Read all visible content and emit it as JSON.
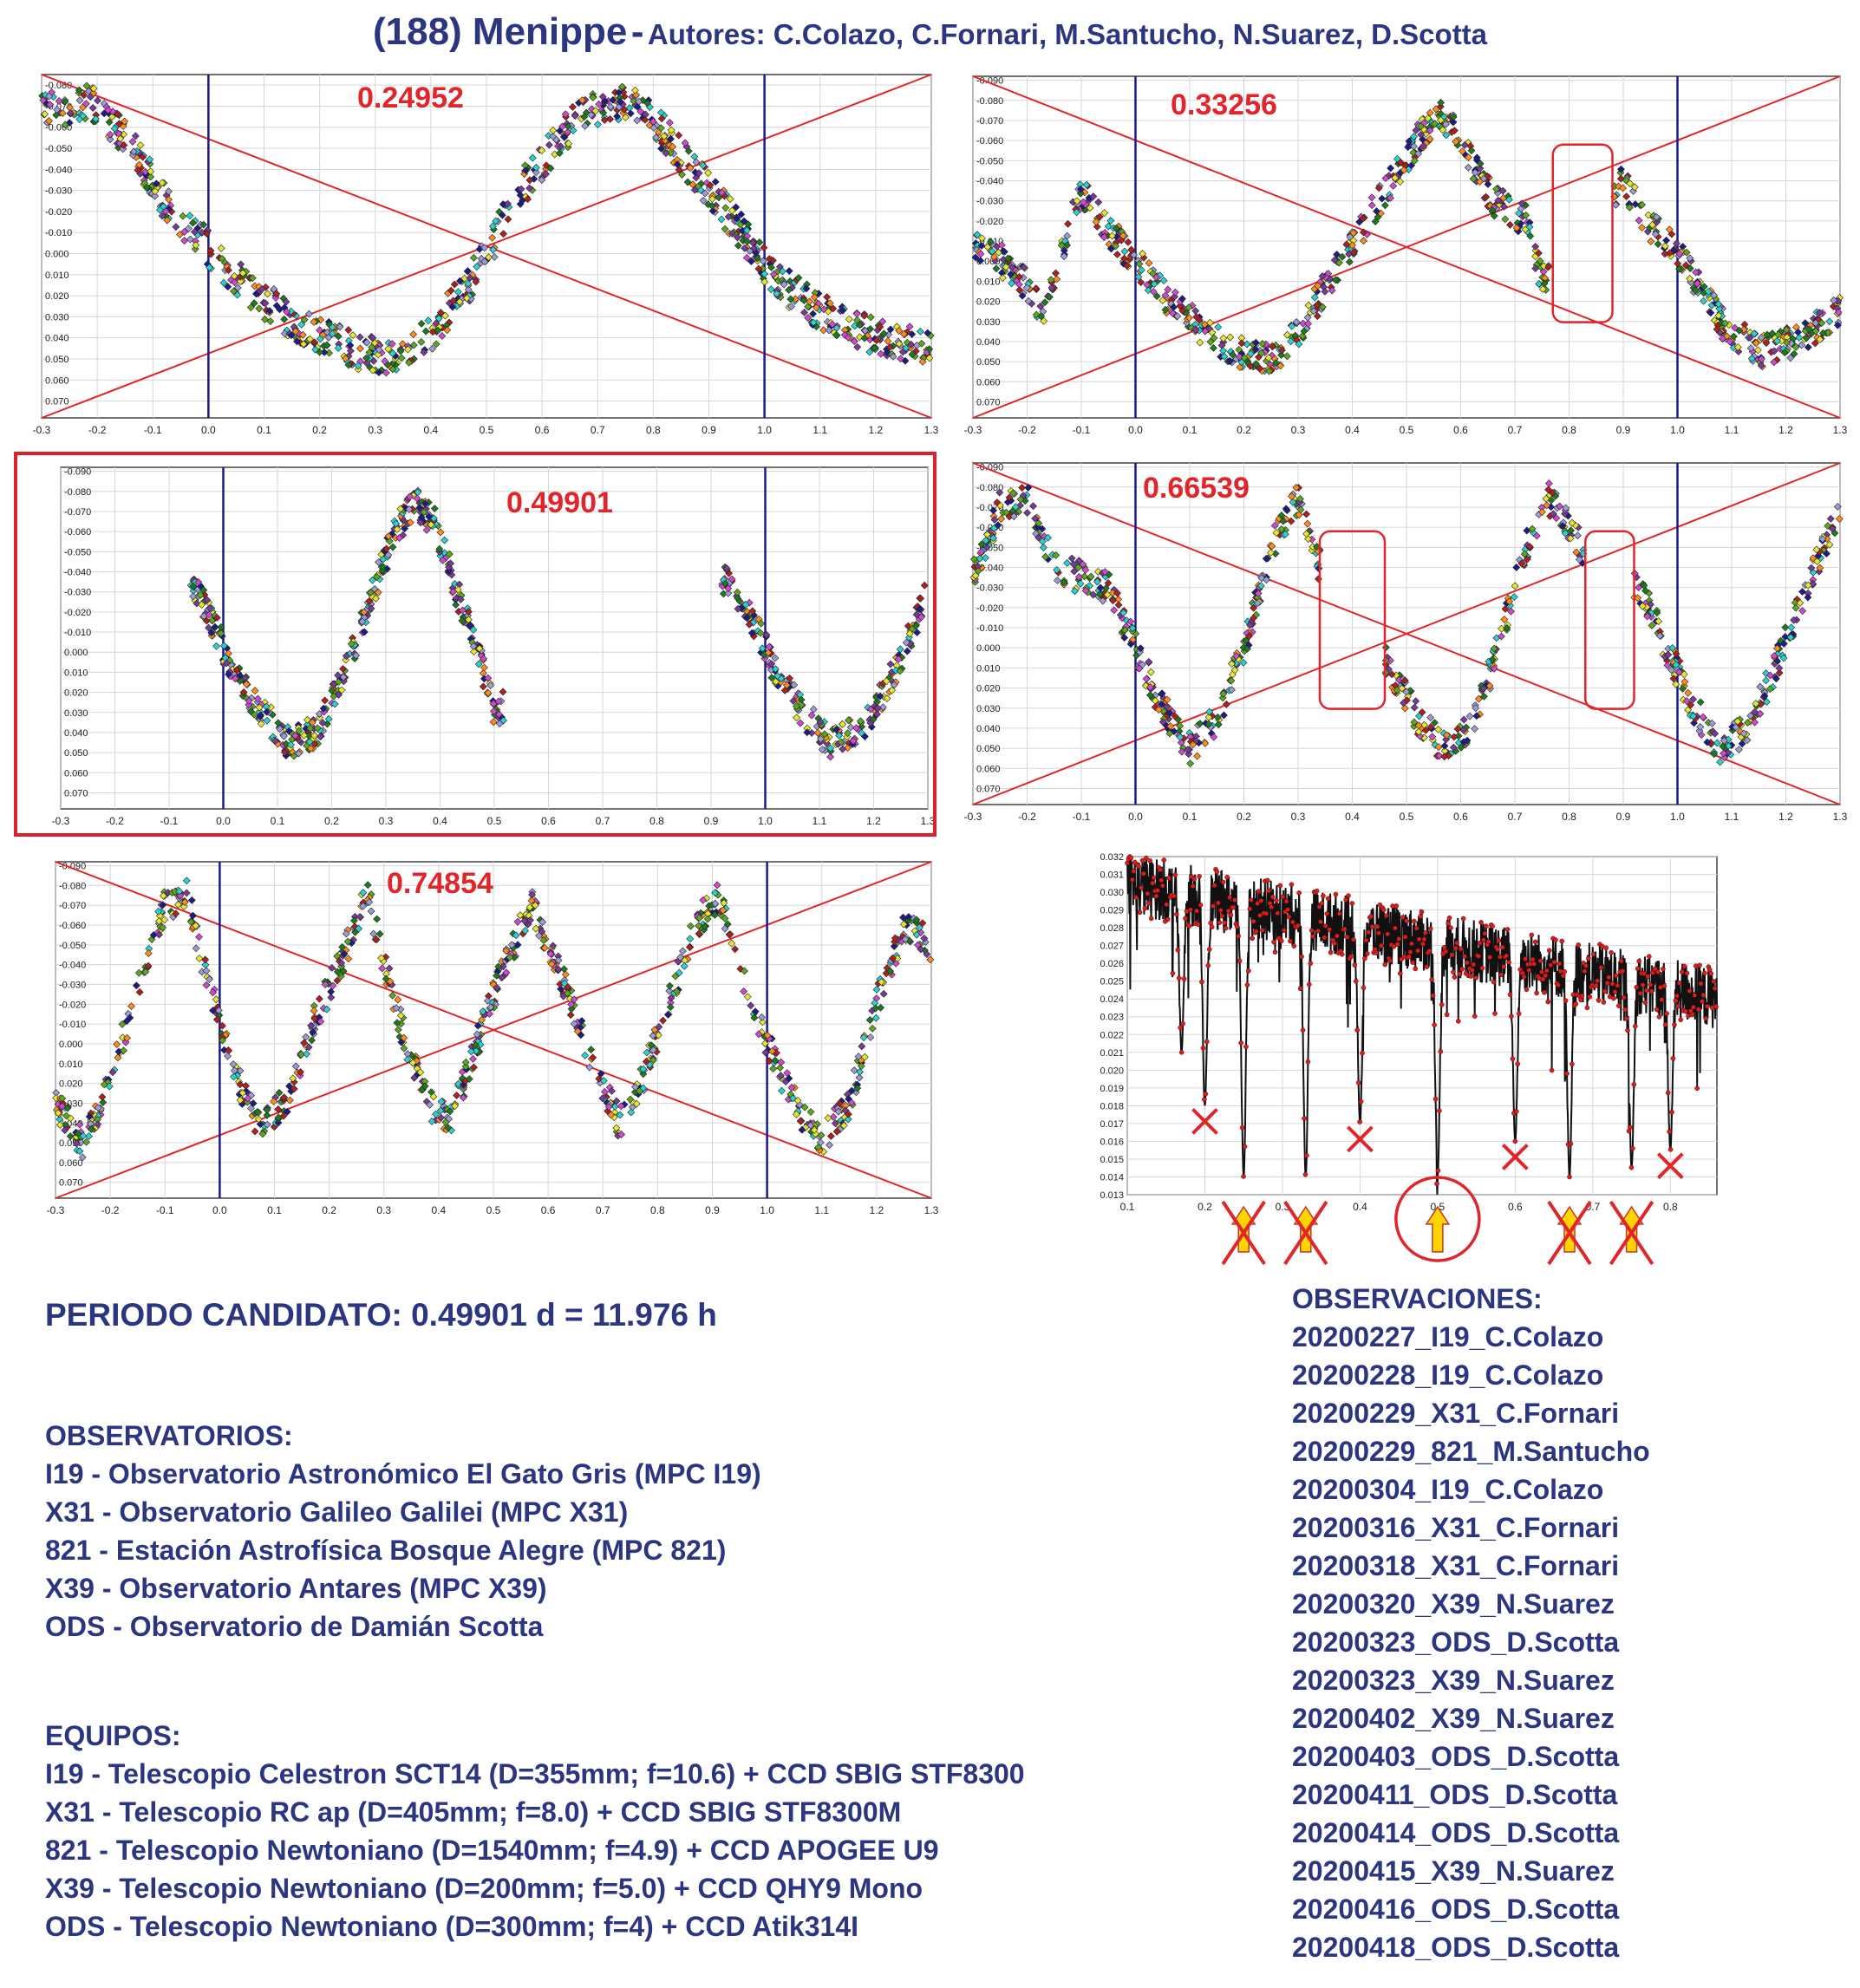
{
  "header": {
    "object": "(188) Menippe",
    "separator": "-",
    "authors": "Autores: C.Colazo, C.Fornari, M.Santucho, N.Suarez, D.Scotta"
  },
  "colors": {
    "navy": "#2b3580",
    "red": "#e0262a",
    "grid": "#d6d6d6",
    "axis_blue": "#1a1a8c",
    "marker_palette": [
      "#1e7a1e",
      "#2bd1d1",
      "#e6e62e",
      "#9b9bd6",
      "#d04ad0",
      "#1d1d8a",
      "#b02020",
      "#5aa81e",
      "#ff8c1a",
      "#7a3a9a"
    ]
  },
  "chart_data": [
    {
      "type": "scatter",
      "title": "0.24952",
      "x_range": [
        -0.3,
        1.3
      ],
      "y_range": [
        -0.085,
        0.078
      ],
      "y_inverted": true,
      "x_ticks": [
        "-0.3",
        "-0.2",
        "-0.1",
        "0.0",
        "0.1",
        "0.2",
        "0.3",
        "0.4",
        "0.5",
        "0.6",
        "0.7",
        "0.8",
        "0.9",
        "1.0",
        "1.1",
        "1.2",
        "1.3"
      ],
      "y_ticks": [
        "-0.080",
        "-0.070",
        "-0.060",
        "-0.050",
        "-0.040",
        "-0.030",
        "-0.020",
        "-0.010",
        "0.000",
        "0.010",
        "0.020",
        "0.030",
        "0.040",
        "0.050",
        "0.060",
        "0.070"
      ],
      "vertical_lines": [
        0.0,
        1.0
      ],
      "cross_lines": true,
      "curve": [
        [
          -0.3,
          -0.066
        ],
        [
          -0.22,
          -0.073
        ],
        [
          -0.15,
          -0.055
        ],
        [
          -0.08,
          -0.025
        ],
        [
          -0.02,
          -0.008
        ],
        [
          0.05,
          0.012
        ],
        [
          0.15,
          0.032
        ],
        [
          0.25,
          0.045
        ],
        [
          0.33,
          0.05
        ],
        [
          0.4,
          0.038
        ],
        [
          0.48,
          0.01
        ],
        [
          0.56,
          -0.03
        ],
        [
          0.65,
          -0.06
        ],
        [
          0.72,
          -0.072
        ],
        [
          0.78,
          -0.07
        ],
        [
          0.84,
          -0.05
        ],
        [
          0.9,
          -0.03
        ],
        [
          0.96,
          -0.01
        ],
        [
          1.02,
          0.012
        ],
        [
          1.1,
          0.028
        ],
        [
          1.2,
          0.04
        ],
        [
          1.3,
          0.045
        ]
      ],
      "gaps": [],
      "spread": 0.009
    },
    {
      "type": "scatter",
      "title": "0.33256",
      "x_range": [
        -0.3,
        1.3
      ],
      "y_range": [
        -0.092,
        0.078
      ],
      "y_inverted": true,
      "x_ticks": [
        "-0.3",
        "-0.2",
        "-0.1",
        "0.0",
        "0.1",
        "0.2",
        "0.3",
        "0.4",
        "0.5",
        "0.6",
        "0.7",
        "0.8",
        "0.9",
        "1.0",
        "1.1",
        "1.2",
        "1.3"
      ],
      "y_ticks": [
        "-0.090",
        "-0.080",
        "-0.070",
        "-0.060",
        "-0.050",
        "-0.040",
        "-0.030",
        "-0.020",
        "-0.010",
        "0.000",
        "0.010",
        "0.020",
        "0.030",
        "0.040",
        "0.050",
        "0.060",
        "0.070"
      ],
      "vertical_lines": [
        0.0,
        1.0
      ],
      "cross_lines": true,
      "curve": [
        [
          -0.3,
          -0.01
        ],
        [
          -0.22,
          0.005
        ],
        [
          -0.17,
          0.025
        ],
        [
          -0.1,
          -0.035
        ],
        [
          -0.05,
          -0.015
        ],
        [
          0.0,
          0.0
        ],
        [
          0.08,
          0.025
        ],
        [
          0.18,
          0.045
        ],
        [
          0.25,
          0.05
        ],
        [
          0.3,
          0.035
        ],
        [
          0.38,
          0.0
        ],
        [
          0.45,
          -0.03
        ],
        [
          0.52,
          -0.06
        ],
        [
          0.56,
          -0.075
        ],
        [
          0.6,
          -0.06
        ],
        [
          0.66,
          -0.03
        ],
        [
          0.72,
          -0.02
        ],
        [
          0.75,
          0.01
        ],
        [
          0.9,
          -0.04
        ],
        [
          0.94,
          -0.02
        ],
        [
          1.0,
          -0.005
        ],
        [
          1.08,
          0.03
        ],
        [
          1.15,
          0.045
        ],
        [
          1.22,
          0.04
        ],
        [
          1.3,
          0.025
        ]
      ],
      "gaps": [
        [
          0.77,
          0.88
        ]
      ],
      "spread": 0.008
    },
    {
      "type": "scatter",
      "title": "0.49901",
      "x_range": [
        -0.3,
        1.3
      ],
      "y_range": [
        -0.092,
        0.078
      ],
      "y_inverted": true,
      "x_ticks": [
        "-0.3",
        "-0.2",
        "-0.1",
        "0.0",
        "0.1",
        "0.2",
        "0.3",
        "0.4",
        "0.5",
        "0.6",
        "0.7",
        "0.8",
        "0.9",
        "1.0",
        "1.1",
        "1.2",
        "1.3"
      ],
      "y_ticks": [
        "-0.090",
        "-0.080",
        "-0.070",
        "-0.060",
        "-0.050",
        "-0.040",
        "-0.030",
        "-0.020",
        "-0.010",
        "0.000",
        "0.010",
        "0.020",
        "0.030",
        "0.040",
        "0.050",
        "0.060",
        "0.070"
      ],
      "vertical_lines": [
        0.0,
        1.0
      ],
      "cross_lines": false,
      "curve": [
        [
          -0.06,
          -0.035
        ],
        [
          -0.02,
          -0.015
        ],
        [
          0.02,
          0.01
        ],
        [
          0.07,
          0.03
        ],
        [
          0.12,
          0.045
        ],
        [
          0.17,
          0.04
        ],
        [
          0.22,
          0.015
        ],
        [
          0.27,
          -0.025
        ],
        [
          0.31,
          -0.055
        ],
        [
          0.35,
          -0.075
        ],
        [
          0.39,
          -0.065
        ],
        [
          0.43,
          -0.03
        ],
        [
          0.47,
          0.0
        ],
        [
          0.5,
          0.03
        ],
        [
          0.93,
          -0.035
        ],
        [
          0.98,
          -0.015
        ],
        [
          1.02,
          0.01
        ],
        [
          1.07,
          0.03
        ],
        [
          1.12,
          0.045
        ],
        [
          1.17,
          0.04
        ],
        [
          1.22,
          0.02
        ],
        [
          1.27,
          -0.01
        ],
        [
          1.3,
          -0.03
        ]
      ],
      "gaps": [
        [
          0.52,
          0.92
        ]
      ],
      "spread": 0.008
    },
    {
      "type": "scatter",
      "title": "0.66539",
      "x_range": [
        -0.3,
        1.3
      ],
      "y_range": [
        -0.092,
        0.078
      ],
      "y_inverted": true,
      "x_ticks": [
        "-0.3",
        "-0.2",
        "-0.1",
        "0.0",
        "0.1",
        "0.2",
        "0.3",
        "0.4",
        "0.5",
        "0.6",
        "0.7",
        "0.8",
        "0.9",
        "1.0",
        "1.1",
        "1.2",
        "1.3"
      ],
      "y_ticks": [
        "-0.090",
        "-0.080",
        "-0.070",
        "-0.060",
        "-0.050",
        "-0.040",
        "-0.030",
        "-0.020",
        "-0.010",
        "0.000",
        "0.010",
        "0.020",
        "0.030",
        "0.040",
        "0.050",
        "0.060",
        "0.070"
      ],
      "vertical_lines": [
        0.0,
        1.0
      ],
      "cross_lines": true,
      "curve": [
        [
          -0.3,
          -0.035
        ],
        [
          -0.25,
          -0.07
        ],
        [
          -0.2,
          -0.075
        ],
        [
          -0.15,
          -0.04
        ],
        [
          -0.05,
          -0.03
        ],
        [
          0.0,
          0.0
        ],
        [
          0.05,
          0.03
        ],
        [
          0.1,
          0.05
        ],
        [
          0.15,
          0.035
        ],
        [
          0.2,
          0.0
        ],
        [
          0.25,
          -0.05
        ],
        [
          0.3,
          -0.075
        ],
        [
          0.33,
          -0.045
        ],
        [
          0.47,
          0.01
        ],
        [
          0.52,
          0.035
        ],
        [
          0.57,
          0.05
        ],
        [
          0.62,
          0.04
        ],
        [
          0.67,
          0.0
        ],
        [
          0.72,
          -0.05
        ],
        [
          0.76,
          -0.075
        ],
        [
          0.8,
          -0.06
        ],
        [
          0.87,
          -0.03
        ],
        [
          0.93,
          -0.03
        ],
        [
          0.98,
          0.0
        ],
        [
          1.03,
          0.03
        ],
        [
          1.08,
          0.05
        ],
        [
          1.13,
          0.04
        ],
        [
          1.18,
          0.01
        ],
        [
          1.24,
          -0.03
        ],
        [
          1.3,
          -0.07
        ]
      ],
      "gaps": [
        [
          0.34,
          0.46
        ],
        [
          0.83,
          0.92
        ]
      ],
      "spread": 0.008
    },
    {
      "type": "scatter",
      "title": "0.74854",
      "x_range": [
        -0.3,
        1.3
      ],
      "y_range": [
        -0.092,
        0.078
      ],
      "y_inverted": true,
      "x_ticks": [
        "-0.3",
        "-0.2",
        "-0.1",
        "0.0",
        "0.1",
        "0.2",
        "0.3",
        "0.4",
        "0.5",
        "0.6",
        "0.7",
        "0.8",
        "0.9",
        "1.0",
        "1.1",
        "1.2",
        "1.3"
      ],
      "y_ticks": [
        "-0.090",
        "-0.080",
        "-0.070",
        "-0.060",
        "-0.050",
        "-0.040",
        "-0.030",
        "-0.020",
        "-0.010",
        "0.000",
        "0.010",
        "0.020",
        "0.030",
        "0.040",
        "0.050",
        "0.060",
        "0.070"
      ],
      "vertical_lines": [
        0.0,
        1.0
      ],
      "cross_lines": true,
      "curve": [
        [
          -0.3,
          0.03
        ],
        [
          -0.25,
          0.05
        ],
        [
          -0.2,
          0.02
        ],
        [
          -0.15,
          -0.03
        ],
        [
          -0.1,
          -0.07
        ],
        [
          -0.06,
          -0.075
        ],
        [
          -0.02,
          -0.03
        ],
        [
          0.02,
          0.01
        ],
        [
          0.07,
          0.04
        ],
        [
          0.12,
          0.03
        ],
        [
          0.17,
          -0.01
        ],
        [
          0.22,
          -0.04
        ],
        [
          0.27,
          -0.075
        ],
        [
          0.33,
          -0.01
        ],
        [
          0.38,
          0.03
        ],
        [
          0.42,
          0.04
        ],
        [
          0.47,
          0.0
        ],
        [
          0.52,
          -0.04
        ],
        [
          0.57,
          -0.07
        ],
        [
          0.63,
          -0.03
        ],
        [
          0.68,
          0.01
        ],
        [
          0.73,
          0.04
        ],
        [
          0.77,
          0.02
        ],
        [
          0.82,
          -0.02
        ],
        [
          0.87,
          -0.06
        ],
        [
          0.91,
          -0.075
        ],
        [
          0.96,
          -0.03
        ],
        [
          1.0,
          0.0
        ],
        [
          1.05,
          0.03
        ],
        [
          1.1,
          0.05
        ],
        [
          1.15,
          0.03
        ],
        [
          1.2,
          -0.02
        ],
        [
          1.25,
          -0.06
        ],
        [
          1.3,
          -0.05
        ]
      ],
      "gaps": [],
      "spread": 0.008
    },
    {
      "type": "line",
      "title": "",
      "x_range": [
        0.1,
        0.86
      ],
      "y_range": [
        0.013,
        0.032
      ],
      "y_inverted": false,
      "x_ticks": [
        "0.1",
        "0.2",
        "0.3",
        "0.4",
        "0.5",
        "0.6",
        "0.7",
        "0.8"
      ],
      "y_ticks": [
        "0.032",
        "0.031",
        "0.030",
        "0.029",
        "0.028",
        "0.027",
        "0.026",
        "0.025",
        "0.024",
        "0.023",
        "0.022",
        "0.021",
        "0.020",
        "0.019",
        "0.018",
        "0.017",
        "0.016",
        "0.015",
        "0.014",
        "0.013"
      ],
      "dips": [
        [
          0.17,
          0.021
        ],
        [
          0.2,
          0.018
        ],
        [
          0.25,
          0.014
        ],
        [
          0.33,
          0.014
        ],
        [
          0.4,
          0.017
        ],
        [
          0.5,
          0.014
        ],
        [
          0.6,
          0.016
        ],
        [
          0.67,
          0.014
        ],
        [
          0.75,
          0.0145
        ],
        [
          0.8,
          0.0155
        ]
      ],
      "x_marks": [
        0.2,
        0.4,
        0.6,
        0.8
      ],
      "struck_arrows": [
        0.25,
        0.33,
        0.67,
        0.75
      ],
      "circled_arrow": 0.5
    }
  ],
  "candidate": {
    "label": "PERIODO CANDIDATO:",
    "value": "0.49901 d = 11.976 h"
  },
  "observatorios": {
    "heading": "OBSERVATORIOS:",
    "items": [
      "I19 - Observatorio Astronómico El Gato Gris (MPC I19)",
      "X31 - Observatorio Galileo Galilei (MPC X31)",
      "821 - Estación Astrofísica Bosque Alegre (MPC 821)",
      "X39 - Observatorio Antares (MPC X39)",
      "ODS - Observatorio de Damián Scotta"
    ]
  },
  "equipos": {
    "heading": "EQUIPOS:",
    "items": [
      "I19 - Telescopio Celestron SCT14 (D=355mm; f=10.6) + CCD SBIG STF8300",
      "X31 - Telescopio RC ap (D=405mm; f=8.0) + CCD SBIG STF8300M",
      "821 - Telescopio  Newtoniano (D=1540mm; f=4.9) + CCD APOGEE U9",
      "X39 - Telescopio Newtoniano (D=200mm; f=5.0) + CCD QHY9 Mono",
      "ODS - Telescopio Newtoniano (D=300mm; f=4) + CCD Atik314I"
    ]
  },
  "observaciones": {
    "heading": "OBSERVACIONES:",
    "items": [
      "20200227_I19_C.Colazo",
      "20200228_I19_C.Colazo",
      "20200229_X31_C.Fornari",
      "20200229_821_M.Santucho",
      "20200304_I19_C.Colazo",
      "20200316_X31_C.Fornari",
      "20200318_X31_C.Fornari",
      "20200320_X39_N.Suarez",
      "20200323_ODS_D.Scotta",
      "20200323_X39_N.Suarez",
      "20200402_X39_N.Suarez",
      "20200403_ODS_D.Scotta",
      "20200411_ODS_D.Scotta",
      "20200414_ODS_D.Scotta",
      "20200415_X39_N.Suarez",
      "20200416_ODS_D.Scotta",
      "20200418_ODS_D.Scotta"
    ]
  }
}
